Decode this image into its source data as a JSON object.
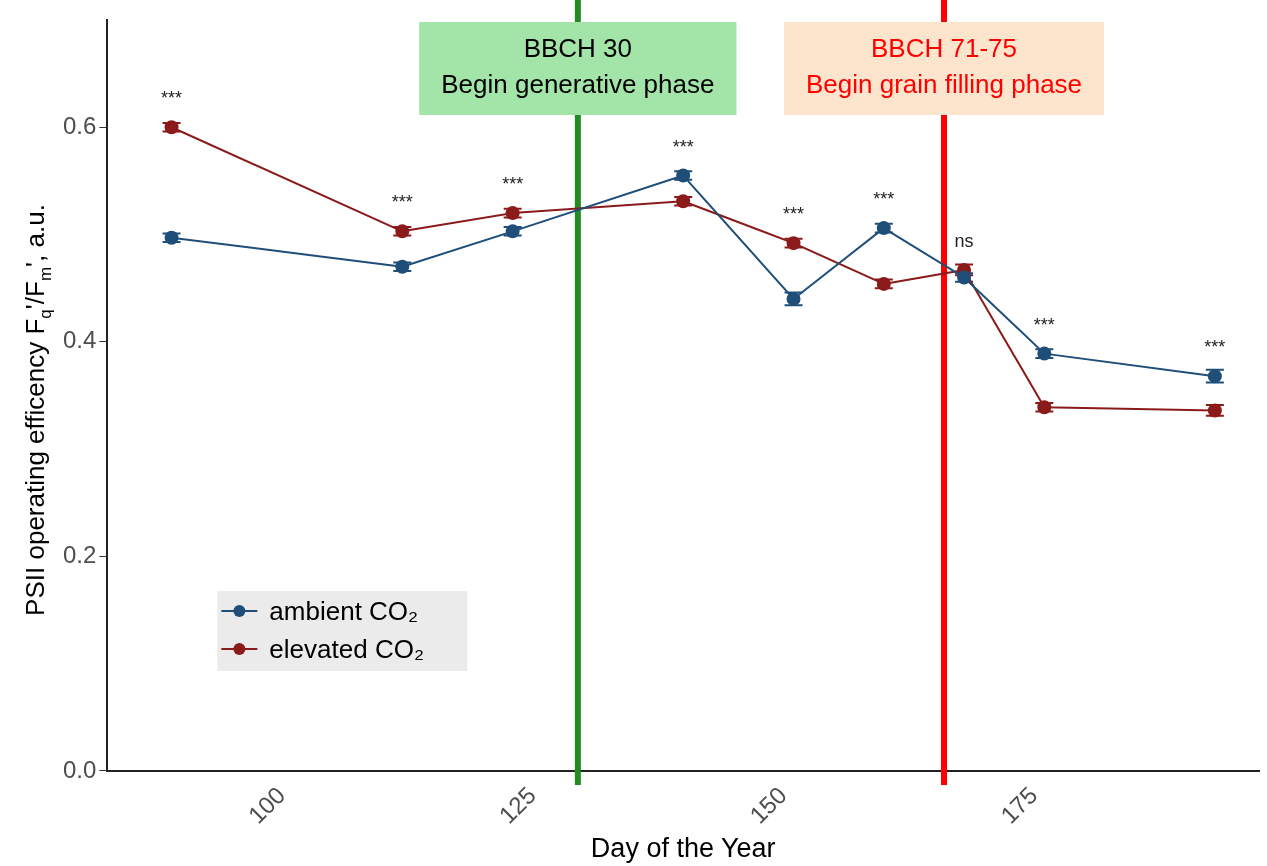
{
  "chart_data": {
    "type": "line",
    "xlabel": "Day of the Year",
    "ylabel": "PSII operating efficency F$_{q}$'/F$_{m}$', a.u.",
    "xlim": [
      82.6,
      197.4
    ],
    "xticks": [
      100,
      125,
      150,
      175
    ],
    "ylim": [
      0,
      0.7
    ],
    "yticks": [
      {
        "value": 0,
        "label": "0.0"
      },
      0.2,
      0.4,
      0.6
    ],
    "x": [
      89,
      112,
      123,
      140,
      151,
      160,
      168,
      176,
      193
    ],
    "series": [
      {
        "name": "ambient CO₂",
        "color": "#1f4e79",
        "values": [
          0.497,
          0.47,
          0.503,
          0.555,
          0.44,
          0.506,
          0.46,
          0.389,
          0.368
        ],
        "errors": [
          0.004,
          0.004,
          0.004,
          0.004,
          0.006,
          0.004,
          0.004,
          0.004,
          0.006
        ]
      },
      {
        "name": "elevated CO₂",
        "color": "#8b1a1a",
        "values": [
          0.6,
          0.503,
          0.52,
          0.531,
          0.492,
          0.454,
          0.467,
          0.339,
          0.336
        ],
        "errors": [
          0.004,
          0.004,
          0.004,
          0.004,
          0.004,
          0.004,
          0.005,
          0.004,
          0.005
        ]
      }
    ],
    "ref_lines": [
      {
        "axis": "x",
        "value": 129.5,
        "label": "BBCH 30\nBegin generative phase",
        "color": "#228b22"
      },
      {
        "axis": "x",
        "value": 166,
        "label": "BBCH 71-75\nBegin grain filling phase",
        "color": "#ff0000"
      }
    ],
    "annotations": [
      {
        "text": "***",
        "x": 89,
        "y": 0.6
      },
      {
        "text": "***",
        "x": 112,
        "y": 0.503
      },
      {
        "text": "***",
        "x": 123,
        "y": 0.52
      },
      {
        "text": "***",
        "x": 140,
        "y": 0.555
      },
      {
        "text": "***",
        "x": 151,
        "y": 0.492
      },
      {
        "text": "***",
        "x": 160,
        "y": 0.506
      },
      {
        "text": "ns",
        "x": 168,
        "y": 0.467
      },
      {
        "text": "***",
        "x": 176,
        "y": 0.389
      },
      {
        "text": "***",
        "x": 193,
        "y": 0.368
      }
    ],
    "legend": "bottom left",
    "grid": false,
    "marker": "circle",
    "line_style": "solid"
  }
}
